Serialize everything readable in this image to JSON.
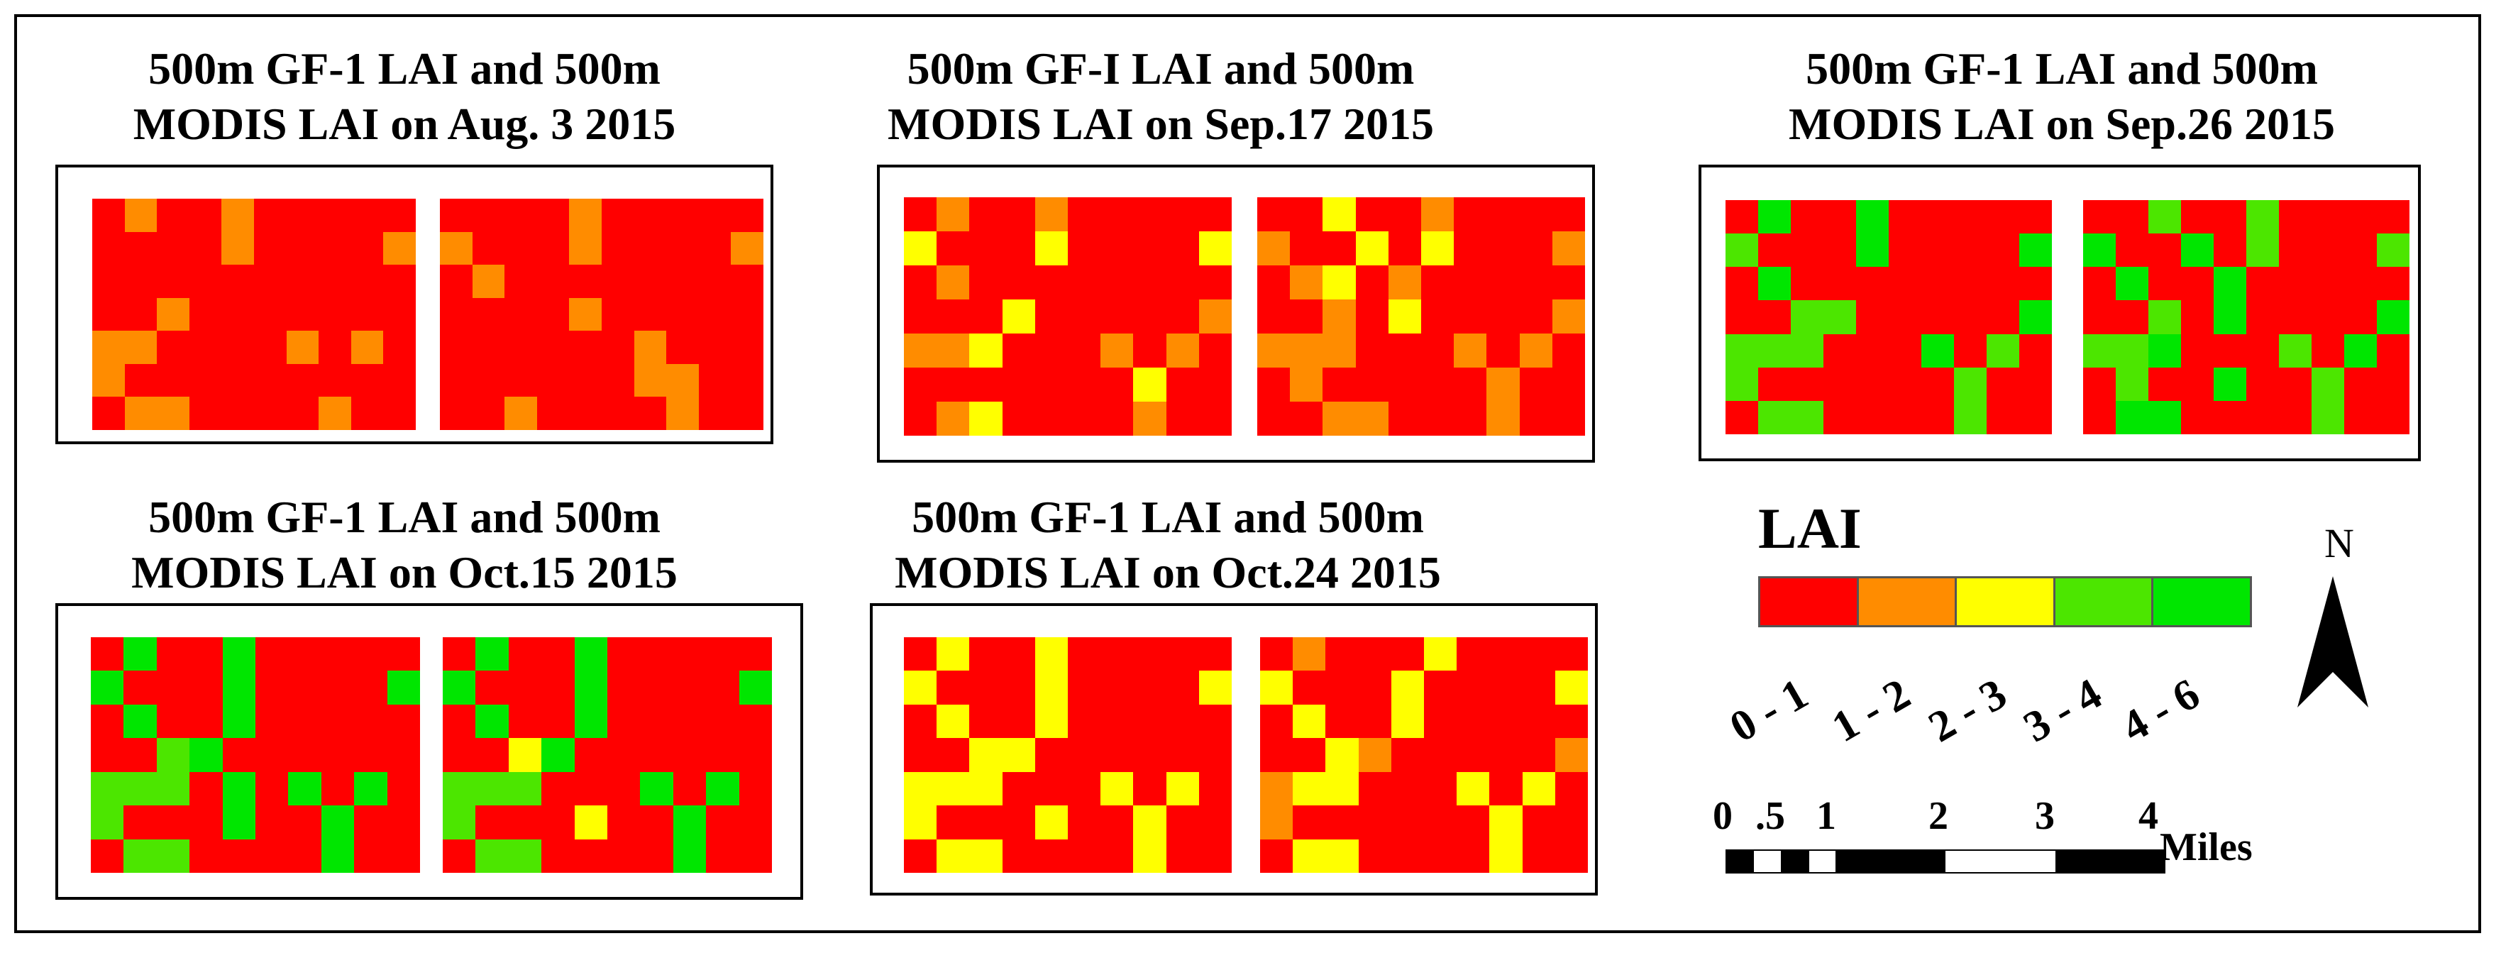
{
  "panels": [
    {
      "title_line1": "500m GF-1 LAI and 500m",
      "title_line2": "MODIS LAI on Aug. 3 2015",
      "maps": [
        [
          [
            0,
            1,
            0,
            0,
            1,
            0,
            0,
            0,
            0,
            0
          ],
          [
            0,
            0,
            0,
            0,
            1,
            0,
            0,
            0,
            0,
            1
          ],
          [
            0,
            0,
            0,
            0,
            0,
            0,
            0,
            0,
            0,
            0
          ],
          [
            0,
            0,
            1,
            0,
            0,
            0,
            0,
            0,
            0,
            0
          ],
          [
            1,
            1,
            0,
            0,
            0,
            0,
            1,
            0,
            1,
            0
          ],
          [
            1,
            0,
            0,
            0,
            0,
            0,
            0,
            0,
            0,
            0
          ],
          [
            0,
            1,
            1,
            0,
            0,
            0,
            0,
            1,
            0,
            0
          ]
        ],
        [
          [
            0,
            0,
            0,
            0,
            1,
            0,
            0,
            0,
            0,
            0
          ],
          [
            1,
            0,
            0,
            0,
            1,
            0,
            0,
            0,
            0,
            1
          ],
          [
            0,
            1,
            0,
            0,
            0,
            0,
            0,
            0,
            0,
            0
          ],
          [
            0,
            0,
            0,
            0,
            1,
            0,
            0,
            0,
            0,
            0
          ],
          [
            0,
            0,
            0,
            0,
            0,
            0,
            1,
            0,
            0,
            0
          ],
          [
            0,
            0,
            0,
            0,
            0,
            0,
            1,
            1,
            0,
            0
          ],
          [
            0,
            0,
            1,
            0,
            0,
            0,
            0,
            1,
            0,
            0
          ]
        ]
      ]
    },
    {
      "title_line1": "500m GF-I LAI and 500m",
      "title_line2": "MODIS LAI on Sep.17 2015",
      "maps": [
        [
          [
            0,
            1,
            0,
            0,
            1,
            0,
            0,
            0,
            0,
            0
          ],
          [
            2,
            0,
            0,
            0,
            2,
            0,
            0,
            0,
            0,
            2
          ],
          [
            0,
            1,
            0,
            0,
            0,
            0,
            0,
            0,
            0,
            0
          ],
          [
            0,
            0,
            0,
            2,
            0,
            0,
            0,
            0,
            0,
            1
          ],
          [
            1,
            1,
            2,
            0,
            0,
            0,
            1,
            0,
            1,
            0
          ],
          [
            0,
            0,
            0,
            0,
            0,
            0,
            0,
            2,
            0,
            0
          ],
          [
            0,
            1,
            2,
            0,
            0,
            0,
            0,
            1,
            0,
            0
          ]
        ],
        [
          [
            0,
            0,
            2,
            0,
            0,
            1,
            0,
            0,
            0,
            0
          ],
          [
            1,
            0,
            0,
            2,
            0,
            2,
            0,
            0,
            0,
            1
          ],
          [
            0,
            1,
            2,
            0,
            1,
            0,
            0,
            0,
            0,
            0
          ],
          [
            0,
            0,
            1,
            0,
            2,
            0,
            0,
            0,
            0,
            1
          ],
          [
            1,
            1,
            1,
            0,
            0,
            0,
            1,
            0,
            1,
            0
          ],
          [
            0,
            1,
            0,
            0,
            0,
            0,
            0,
            1,
            0,
            0
          ],
          [
            0,
            0,
            1,
            1,
            0,
            0,
            0,
            1,
            0,
            0
          ]
        ]
      ]
    },
    {
      "title_line1": "500m GF-1 LAI and 500m",
      "title_line2": "MODIS LAI on Sep.26 2015",
      "maps": [
        [
          [
            0,
            4,
            0,
            0,
            4,
            0,
            0,
            0,
            0,
            0
          ],
          [
            3,
            0,
            0,
            0,
            4,
            0,
            0,
            0,
            0,
            4
          ],
          [
            0,
            4,
            0,
            0,
            0,
            0,
            0,
            0,
            0,
            0
          ],
          [
            0,
            0,
            3,
            3,
            0,
            0,
            0,
            0,
            0,
            4
          ],
          [
            3,
            3,
            3,
            0,
            0,
            0,
            4,
            0,
            3,
            0
          ],
          [
            3,
            0,
            0,
            0,
            0,
            0,
            0,
            3,
            0,
            0
          ],
          [
            0,
            3,
            3,
            0,
            0,
            0,
            0,
            3,
            0,
            0
          ]
        ],
        [
          [
            0,
            0,
            3,
            0,
            0,
            3,
            0,
            0,
            0,
            0
          ],
          [
            4,
            0,
            0,
            4,
            0,
            3,
            0,
            0,
            0,
            3
          ],
          [
            0,
            4,
            0,
            0,
            4,
            0,
            0,
            0,
            0,
            0
          ],
          [
            0,
            0,
            3,
            0,
            4,
            0,
            0,
            0,
            0,
            4
          ],
          [
            3,
            3,
            4,
            0,
            0,
            0,
            3,
            0,
            4,
            0
          ],
          [
            0,
            3,
            0,
            0,
            4,
            0,
            0,
            3,
            0,
            0
          ],
          [
            0,
            4,
            4,
            0,
            0,
            0,
            0,
            3,
            0,
            0
          ]
        ]
      ]
    },
    {
      "title_line1": "500m GF-1 LAI and 500m",
      "title_line2": "MODIS LAI on Oct.15 2015",
      "maps": [
        [
          [
            0,
            4,
            0,
            0,
            4,
            0,
            0,
            0,
            0,
            0
          ],
          [
            4,
            0,
            0,
            0,
            4,
            0,
            0,
            0,
            0,
            4
          ],
          [
            0,
            4,
            0,
            0,
            4,
            0,
            0,
            0,
            0,
            0
          ],
          [
            0,
            0,
            3,
            4,
            0,
            0,
            0,
            0,
            0,
            0
          ],
          [
            3,
            3,
            3,
            0,
            4,
            0,
            4,
            0,
            4,
            0
          ],
          [
            3,
            0,
            0,
            0,
            4,
            0,
            0,
            4,
            0,
            0
          ],
          [
            0,
            3,
            3,
            0,
            0,
            0,
            0,
            4,
            0,
            0
          ]
        ],
        [
          [
            0,
            4,
            0,
            0,
            4,
            0,
            0,
            0,
            0,
            0
          ],
          [
            4,
            0,
            0,
            0,
            4,
            0,
            0,
            0,
            0,
            4
          ],
          [
            0,
            4,
            0,
            0,
            4,
            0,
            0,
            0,
            0,
            0
          ],
          [
            0,
            0,
            2,
            4,
            0,
            0,
            0,
            0,
            0,
            0
          ],
          [
            3,
            3,
            3,
            0,
            0,
            0,
            4,
            0,
            4,
            0
          ],
          [
            3,
            0,
            0,
            0,
            2,
            0,
            0,
            4,
            0,
            0
          ],
          [
            0,
            3,
            3,
            0,
            0,
            0,
            0,
            4,
            0,
            0
          ]
        ]
      ]
    },
    {
      "title_line1": "500m GF-1 LAI and 500m",
      "title_line2": "MODIS LAI on Oct.24 2015",
      "maps": [
        [
          [
            0,
            2,
            0,
            0,
            2,
            0,
            0,
            0,
            0,
            0
          ],
          [
            2,
            0,
            0,
            0,
            2,
            0,
            0,
            0,
            0,
            2
          ],
          [
            0,
            2,
            0,
            0,
            2,
            0,
            0,
            0,
            0,
            0
          ],
          [
            0,
            0,
            2,
            2,
            0,
            0,
            0,
            0,
            0,
            0
          ],
          [
            2,
            2,
            2,
            0,
            0,
            0,
            2,
            0,
            2,
            0
          ],
          [
            2,
            0,
            0,
            0,
            2,
            0,
            0,
            2,
            0,
            0
          ],
          [
            0,
            2,
            2,
            0,
            0,
            0,
            0,
            2,
            0,
            0
          ]
        ],
        [
          [
            0,
            1,
            0,
            0,
            0,
            2,
            0,
            0,
            0,
            0
          ],
          [
            2,
            0,
            0,
            0,
            2,
            0,
            0,
            0,
            0,
            2
          ],
          [
            0,
            2,
            0,
            0,
            2,
            0,
            0,
            0,
            0,
            0
          ],
          [
            0,
            0,
            2,
            1,
            0,
            0,
            0,
            0,
            0,
            1
          ],
          [
            1,
            2,
            2,
            0,
            0,
            0,
            2,
            0,
            2,
            0
          ],
          [
            1,
            0,
            0,
            0,
            0,
            0,
            0,
            2,
            0,
            0
          ],
          [
            0,
            2,
            2,
            0,
            0,
            0,
            0,
            2,
            0,
            0
          ]
        ]
      ]
    }
  ],
  "legend": {
    "title": "LAI",
    "classes": [
      {
        "label": "0 - 1",
        "color": "#ff0000"
      },
      {
        "label": "1 - 2",
        "color": "#ff8c00"
      },
      {
        "label": "2 - 3",
        "color": "#ffff00"
      },
      {
        "label": "3 - 4",
        "color": "#4ce600"
      },
      {
        "label": "4 - 6",
        "color": "#00e600"
      }
    ]
  },
  "north_arrow": {
    "label": "N"
  },
  "scale_bar": {
    "ticks": [
      "0",
      ".5",
      "1",
      "2",
      "3",
      "4"
    ],
    "unit": "Miles"
  }
}
